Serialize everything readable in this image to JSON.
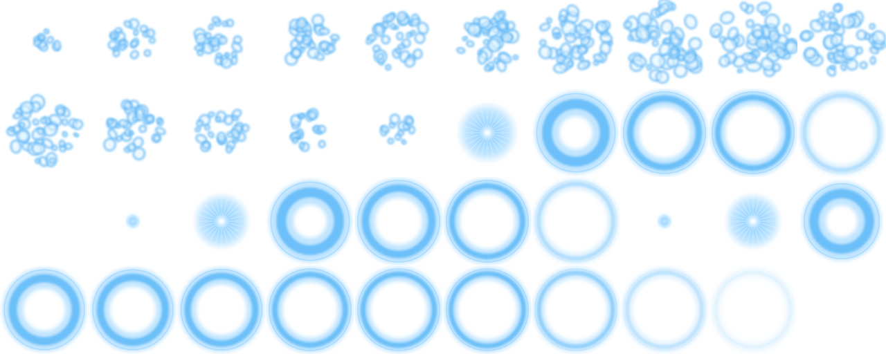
{
  "sprite_sheet": {
    "name": "",
    "columns": 10,
    "rows": 4,
    "colors": {
      "core": "#dff4ff",
      "glow": "#8fd0ff",
      "edge": "#4fb3f5",
      "deep": "#2f9ae6",
      "background": "#ffffff"
    },
    "frames": [
      {
        "index": 0,
        "effect": "bubbles",
        "level": 0.1
      },
      {
        "index": 1,
        "effect": "bubbles",
        "level": 0.35
      },
      {
        "index": 2,
        "effect": "bubbles",
        "level": 0.45
      },
      {
        "index": 3,
        "effect": "bubbles",
        "level": 0.55
      },
      {
        "index": 4,
        "effect": "bubbles",
        "level": 0.65
      },
      {
        "index": 5,
        "effect": "bubbles",
        "level": 0.75
      },
      {
        "index": 6,
        "effect": "bubbles",
        "level": 0.85
      },
      {
        "index": 7,
        "effect": "bubbles",
        "level": 1.0
      },
      {
        "index": 8,
        "effect": "bubbles",
        "level": 0.95
      },
      {
        "index": 9,
        "effect": "bubbles",
        "level": 0.9
      },
      {
        "index": 10,
        "effect": "bubbles",
        "level": 0.8
      },
      {
        "index": 11,
        "effect": "bubbles",
        "level": 0.6
      },
      {
        "index": 12,
        "effect": "bubbles",
        "level": 0.45
      },
      {
        "index": 13,
        "effect": "bubbles",
        "level": 0.3
      },
      {
        "index": 14,
        "effect": "bubbles",
        "level": 0.15
      },
      {
        "index": 15,
        "effect": "burst",
        "level": 0.75
      },
      {
        "index": 16,
        "effect": "ring",
        "level": 0.9,
        "thickness": 0.55
      },
      {
        "index": 17,
        "effect": "ring",
        "level": 1.0,
        "thickness": 0.35
      },
      {
        "index": 18,
        "effect": "ring",
        "level": 1.0,
        "thickness": 0.3
      },
      {
        "index": 19,
        "effect": "ring",
        "level": 1.0,
        "thickness": 0.2,
        "fade": 0.55
      },
      {
        "index": 20,
        "effect": "empty"
      },
      {
        "index": 21,
        "effect": "burst",
        "level": 0.1
      },
      {
        "index": 22,
        "effect": "burst",
        "level": 0.7
      },
      {
        "index": 23,
        "effect": "ring",
        "level": 0.9,
        "thickness": 0.55
      },
      {
        "index": 24,
        "effect": "ring",
        "level": 1.0,
        "thickness": 0.4
      },
      {
        "index": 25,
        "effect": "ring",
        "level": 1.0,
        "thickness": 0.3
      },
      {
        "index": 26,
        "effect": "ring",
        "level": 1.0,
        "thickness": 0.2,
        "fade": 0.55
      },
      {
        "index": 27,
        "effect": "burst",
        "level": 0.1
      },
      {
        "index": 28,
        "effect": "burst",
        "level": 0.7
      },
      {
        "index": 29,
        "effect": "ring",
        "level": 0.8,
        "thickness": 0.55
      },
      {
        "index": 30,
        "effect": "ring",
        "level": 0.95,
        "thickness": 0.45
      },
      {
        "index": 31,
        "effect": "ring",
        "level": 0.95,
        "thickness": 0.4
      },
      {
        "index": 32,
        "effect": "ring",
        "level": 0.97,
        "thickness": 0.35
      },
      {
        "index": 33,
        "effect": "ring",
        "level": 1.0,
        "thickness": 0.3
      },
      {
        "index": 34,
        "effect": "ring",
        "level": 1.0,
        "thickness": 0.28
      },
      {
        "index": 35,
        "effect": "ring",
        "level": 1.0,
        "thickness": 0.25
      },
      {
        "index": 36,
        "effect": "ring",
        "level": 1.0,
        "thickness": 0.22,
        "fade": 0.75
      },
      {
        "index": 37,
        "effect": "ring",
        "level": 1.0,
        "thickness": 0.2,
        "fade": 0.45
      },
      {
        "index": 38,
        "effect": "ring",
        "level": 1.0,
        "thickness": 0.2,
        "fade": 0.2
      },
      {
        "index": 39,
        "effect": "empty"
      }
    ]
  }
}
